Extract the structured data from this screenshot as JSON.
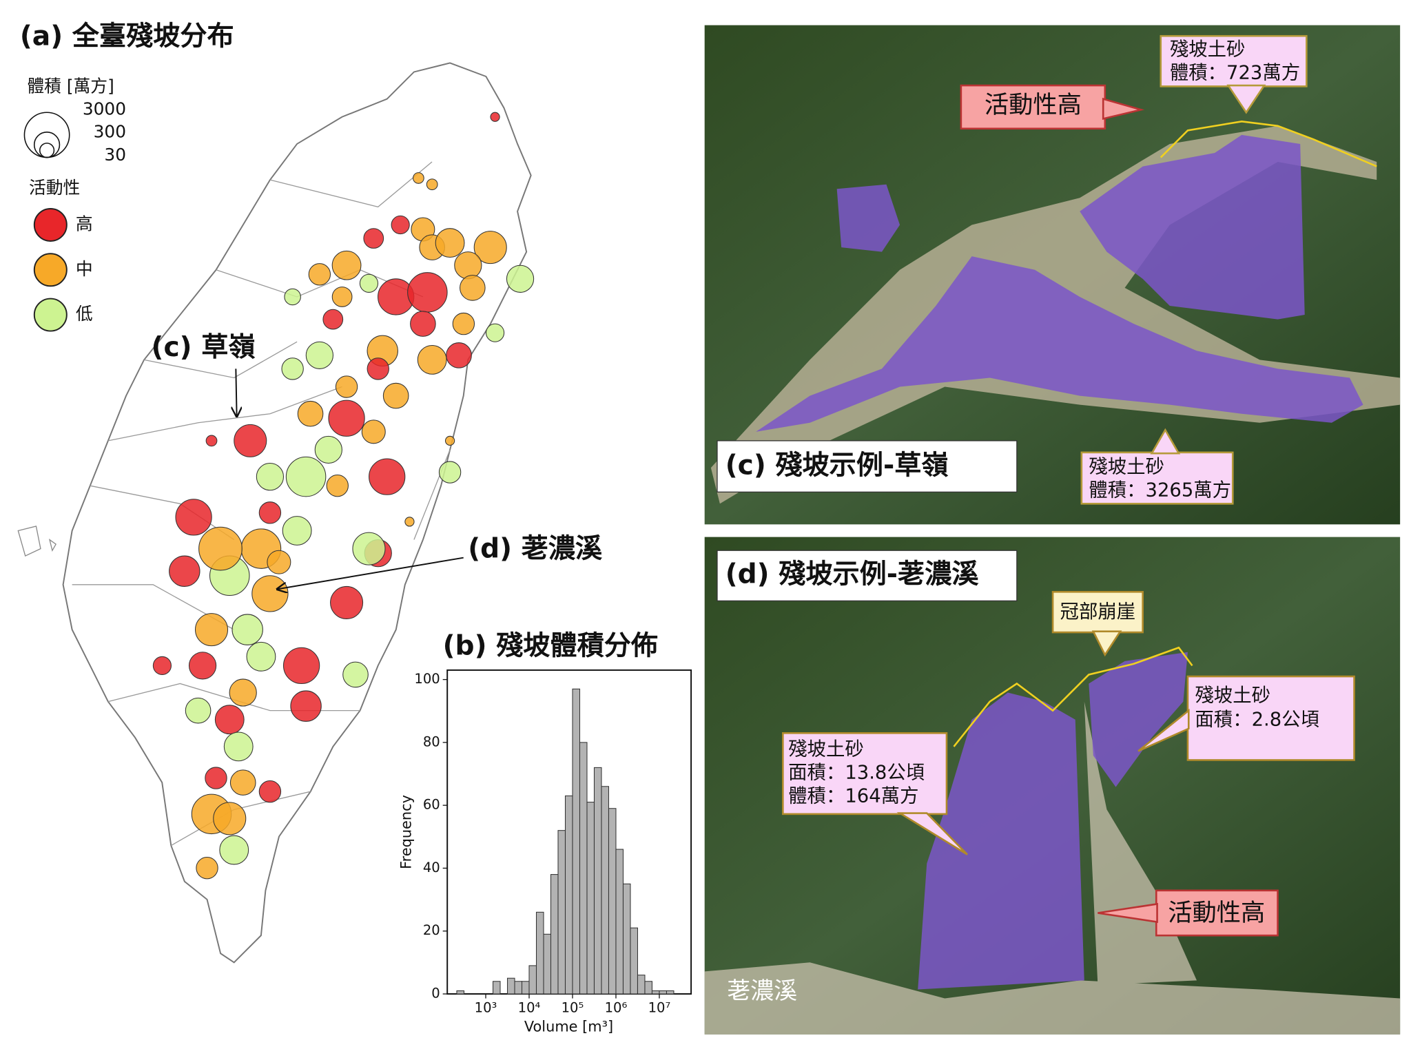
{
  "map": {
    "title": "(a) 全臺殘坡分布",
    "size_legend": {
      "title": "體積 [萬方]",
      "values": [
        3000,
        300,
        30
      ]
    },
    "activity_legend": {
      "title": "活動性",
      "classes": [
        {
          "name": "高",
          "color": "#e8262a"
        },
        {
          "name": "中",
          "color": "#f7a928"
        },
        {
          "name": "低",
          "color": "#cdf391"
        }
      ]
    },
    "annotations": [
      "(c) 草嶺",
      "(d) 荖濃溪"
    ],
    "lon": [
      121.709,
      121.383,
      121.441,
      121.306,
      121.402,
      121.441,
      121.517,
      121.689,
      121.192,
      121.077,
      120.962,
      121.058,
      121.172,
      121.287,
      121.421,
      121.594,
      121.613,
      121.816,
      120.847,
      121.019,
      121.575,
      121.402,
      121.709,
      121.23,
      121.441,
      121.555,
      120.962,
      120.847,
      121.077,
      121.211,
      121.287,
      121.077,
      120.923,
      121.0,
      121.192,
      121.249,
      120.904,
      120.751,
      120.667,
      121.038,
      120.751,
      120.713,
      120.426,
      120.387,
      120.579,
      120.54,
      120.866,
      120.789,
      121.077,
      121.211,
      121.172,
      120.751,
      120.502,
      120.655,
      120.885,
      120.713,
      120.464,
      121.115,
      120.904,
      120.636,
      120.579,
      120.445,
      120.617,
      120.521,
      120.751,
      120.636,
      120.502,
      120.579,
      120.598,
      120.483,
      120.292,
      120.502,
      121.345,
      121.517,
      121.517
    ],
    "lat": [
      25.096,
      24.865,
      24.841,
      24.688,
      24.671,
      24.603,
      24.62,
      24.603,
      24.637,
      24.535,
      24.501,
      24.416,
      24.467,
      24.416,
      24.433,
      24.535,
      24.45,
      24.484,
      24.416,
      24.331,
      24.314,
      24.314,
      24.28,
      24.212,
      24.178,
      24.195,
      24.195,
      24.144,
      24.076,
      24.144,
      24.042,
      23.957,
      23.974,
      23.838,
      23.906,
      23.736,
      23.736,
      23.736,
      23.872,
      23.702,
      23.6,
      23.464,
      23.583,
      23.379,
      23.362,
      23.464,
      23.532,
      23.413,
      23.26,
      23.447,
      23.464,
      23.294,
      23.158,
      23.158,
      23.022,
      23.056,
      23.022,
      22.988,
      22.869,
      22.92,
      22.818,
      22.852,
      22.716,
      22.597,
      22.546,
      22.58,
      22.461,
      22.444,
      22.325,
      22.257,
      23.022,
      23.872,
      23.566,
      23.872,
      23.753
    ],
    "volume": [
      5,
      10,
      10,
      77,
      219,
      295,
      503,
      806,
      112,
      503,
      159,
      112,
      77,
      1229,
      1800,
      389,
      295,
      389,
      50,
      112,
      159,
      295,
      77,
      641,
      503,
      295,
      389,
      159,
      159,
      159,
      295,
      1229,
      295,
      389,
      219,
      1229,
      1800,
      389,
      806,
      159,
      159,
      1800,
      1229,
      641,
      1800,
      2548,
      503,
      219,
      806,
      389,
      806,
      1229,
      806,
      641,
      1229,
      503,
      389,
      295,
      641,
      389,
      503,
      295,
      503,
      159,
      159,
      295,
      1800,
      806,
      503,
      159,
      77,
      10,
      5,
      5,
      159
    ],
    "activity": [
      0,
      1,
      1,
      0,
      1,
      1,
      1,
      1,
      0,
      1,
      1,
      1,
      2,
      0,
      0,
      1,
      1,
      2,
      2,
      0,
      1,
      0,
      2,
      1,
      1,
      0,
      2,
      2,
      1,
      0,
      1,
      0,
      1,
      2,
      1,
      0,
      2,
      2,
      0,
      1,
      0,
      1,
      0,
      0,
      2,
      1,
      2,
      1,
      0,
      0,
      2,
      1,
      1,
      2,
      0,
      2,
      0,
      2,
      0,
      1,
      0,
      2,
      2,
      0,
      0,
      1,
      1,
      1,
      2,
      1,
      0,
      0,
      1,
      1,
      2
    ]
  },
  "chart_data": {
    "type": "histogram",
    "title": "(b) 殘坡體積分佈",
    "x_label": "Volume [m³]",
    "y_label": "Frequency",
    "xscale": "log",
    "color": "#b3b3b3",
    "bins": [
      215,
      316,
      464,
      681,
      1000,
      1468,
      2154,
      3162,
      4642,
      6813,
      10000,
      14678,
      21544,
      31623,
      46416,
      68129,
      100000,
      146780,
      215443,
      316228,
      464159,
      681292,
      1000000,
      1467799,
      2154435,
      3162278,
      4641589,
      6812921,
      10000000,
      14677993,
      21544347
    ],
    "counts": [
      1,
      0,
      0,
      0,
      0,
      4,
      0,
      5,
      4,
      4,
      9,
      26,
      19,
      38,
      52,
      63,
      97,
      80,
      61,
      72,
      66,
      59,
      46,
      35,
      21,
      6,
      4,
      1,
      1,
      1
    ],
    "xlim": [
      130,
      54000000
    ],
    "ylim": [
      0,
      103
    ],
    "xticks": [
      {
        "value": 1000,
        "label": "10³"
      },
      {
        "value": 10000,
        "label": "10⁴"
      },
      {
        "value": 100000,
        "label": "10⁵"
      },
      {
        "value": 1000000,
        "label": "10⁶"
      },
      {
        "value": 10000000,
        "label": "10⁷"
      }
    ],
    "yticks": [
      0,
      20,
      40,
      60,
      80,
      100
    ]
  },
  "photos": [
    {
      "label": "(c) 殘坡示例-草嶺",
      "callouts": [
        [
          "活動性高"
        ],
        [
          "殘坡土砂",
          "體積：723萬方"
        ],
        [
          "殘坡土砂",
          "體積：3265萬方"
        ]
      ]
    },
    {
      "label": "(d) 殘坡示例-荖濃溪",
      "callouts": [
        [
          "冠部崩崖"
        ],
        [
          "殘坡土砂",
          "面積：2.8公頃"
        ],
        [
          "殘坡土砂",
          "面積：13.8公頃",
          "體積：164萬方"
        ],
        [
          "活動性高"
        ]
      ],
      "place": "荖濃溪"
    }
  ]
}
